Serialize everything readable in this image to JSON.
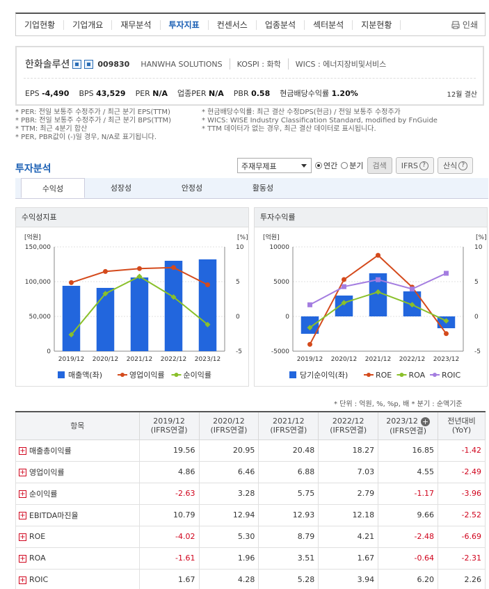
{
  "nav": {
    "tabs": [
      "기업현황",
      "기업개요",
      "재무분석",
      "투자지표",
      "컨센서스",
      "업종분석",
      "섹터분석",
      "지분현황"
    ],
    "active": 3,
    "print": "인쇄"
  },
  "company": {
    "name": "한화솔루션",
    "code": "009830",
    "eng": "HANWHA SOLUTIONS",
    "market": "KOSPI : 화학",
    "wics": "WICS : 에너지장비및서비스",
    "eps_label": "EPS",
    "eps": "-4,490",
    "bps_label": "BPS",
    "bps": "43,529",
    "per_label": "PER",
    "per": "N/A",
    "iper_label": "업종PER",
    "iper": "N/A",
    "pbr_label": "PBR",
    "pbr": "0.58",
    "div_label": "현금배당수익률",
    "div": "1.20%",
    "fiscal": "12월 결산"
  },
  "notes": {
    "left": [
      "* PER: 전일 보통주 수정주가 / 최근 분기 EPS(TTM)",
      "* PBR: 전일 보통주 수정주가 / 최근 분기 BPS(TTM)",
      "* TTM: 최근 4분기 합산",
      "* PER, PBR값이 (-)일 경우, N/A로 표기됩니다."
    ],
    "right": [
      "* 현금배당수익률: 최근 결산 수정DPS(현금) / 전일 보통주 수정주가",
      "* WICS: WISE Industry Classification Standard, modified by FnGuide",
      "* TTM 데이터가 없는 경우, 최근 결산 데이터로 표시됩니다."
    ]
  },
  "section": {
    "title": "투자분석",
    "select": "주재무제표",
    "radio_annual": "연간",
    "radio_quarter": "분기",
    "search": "검색",
    "ifrs": "IFRS",
    "formula": "산식"
  },
  "subtabs": [
    "수익성",
    "성장성",
    "안정성",
    "활동성"
  ],
  "panels": {
    "left_title": "수익성지표",
    "right_title": "투자수익률"
  },
  "chart_data": [
    {
      "type": "bar",
      "title": "수익성지표",
      "categories": [
        "2019/12",
        "2020/12",
        "2021/12",
        "2022/12",
        "2023/12"
      ],
      "y_left_label": "[억원]",
      "y_right_label": "[%]",
      "y_left_ticks": [
        "150,000",
        "100,000",
        "50,000",
        "0"
      ],
      "y_right_ticks": [
        "10",
        "5",
        "0",
        "-5"
      ],
      "y_left_lim": [
        0,
        150000
      ],
      "y_right_lim": [
        -5,
        10
      ],
      "series": [
        {
          "name": "매출액(좌)",
          "kind": "bar",
          "axis": "left",
          "color": "#2266dd",
          "values": [
            94000,
            91000,
            106000,
            130000,
            132000
          ]
        },
        {
          "name": "영업이익률",
          "kind": "line",
          "axis": "right",
          "color": "#d44a1c",
          "values": [
            4.86,
            6.46,
            6.88,
            7.03,
            4.55
          ]
        },
        {
          "name": "순이익률",
          "kind": "line",
          "axis": "right",
          "color": "#8ac02a",
          "values": [
            -2.63,
            3.28,
            5.75,
            2.79,
            -1.17
          ]
        }
      ]
    },
    {
      "type": "bar",
      "title": "투자수익률",
      "categories": [
        "2019/12",
        "2020/12",
        "2021/12",
        "2022/12",
        "2023/12"
      ],
      "y_left_label": "[억원]",
      "y_right_label": "[%]",
      "y_left_ticks": [
        "10000",
        "5000",
        "0",
        "-5000"
      ],
      "y_right_ticks": [
        "10",
        "5",
        "0",
        "-5"
      ],
      "y_left_lim": [
        -5000,
        10000
      ],
      "y_right_lim": [
        -5,
        10
      ],
      "series": [
        {
          "name": "당기순이익(좌)",
          "kind": "bar",
          "axis": "left",
          "color": "#2266dd",
          "values": [
            -2500,
            3000,
            6200,
            3600,
            -1700
          ]
        },
        {
          "name": "ROE",
          "kind": "line",
          "axis": "right",
          "color": "#d44a1c",
          "values": [
            -4.02,
            5.3,
            8.79,
            4.21,
            -2.48
          ]
        },
        {
          "name": "ROA",
          "kind": "line",
          "axis": "right",
          "color": "#8ac02a",
          "values": [
            -1.61,
            1.96,
            3.51,
            1.67,
            -0.64
          ]
        },
        {
          "name": "ROIC",
          "kind": "line",
          "axis": "right",
          "color": "#a47de0",
          "values": [
            1.67,
            4.28,
            5.28,
            3.94,
            6.2
          ]
        }
      ]
    }
  ],
  "units": "* 단위 : 억원, %, %p, 배      * 분기 : 순액기준",
  "table": {
    "header_item": "항목",
    "columns": [
      {
        "year": "2019/12",
        "sub": "(IFRS연결)"
      },
      {
        "year": "2020/12",
        "sub": "(IFRS연결)"
      },
      {
        "year": "2021/12",
        "sub": "(IFRS연결)"
      },
      {
        "year": "2022/12",
        "sub": "(IFRS연결)"
      },
      {
        "year": "2023/12",
        "sub": "(IFRS연결)"
      }
    ],
    "yoy_header": "전년대비",
    "yoy_sub": "(YoY)",
    "rows": [
      {
        "label": "매출총이익률",
        "values": [
          "19.56",
          "20.95",
          "20.48",
          "18.27",
          "16.85"
        ],
        "yoy": "-1.42"
      },
      {
        "label": "영업이익률",
        "values": [
          "4.86",
          "6.46",
          "6.88",
          "7.03",
          "4.55"
        ],
        "yoy": "-2.49"
      },
      {
        "label": "순이익률",
        "values": [
          "-2.63",
          "3.28",
          "5.75",
          "2.79",
          "-1.17"
        ],
        "yoy": "-3.96"
      },
      {
        "label": "EBITDA마진율",
        "values": [
          "10.79",
          "12.94",
          "12.93",
          "12.18",
          "9.66"
        ],
        "yoy": "-2.52"
      },
      {
        "label": "ROE",
        "values": [
          "-4.02",
          "5.30",
          "8.79",
          "4.21",
          "-2.48"
        ],
        "yoy": "-6.69"
      },
      {
        "label": "ROA",
        "values": [
          "-1.61",
          "1.96",
          "3.51",
          "1.67",
          "-0.64"
        ],
        "yoy": "-2.31"
      },
      {
        "label": "ROIC",
        "values": [
          "1.67",
          "4.28",
          "5.28",
          "3.94",
          "6.20"
        ],
        "yoy": "2.26"
      }
    ]
  }
}
